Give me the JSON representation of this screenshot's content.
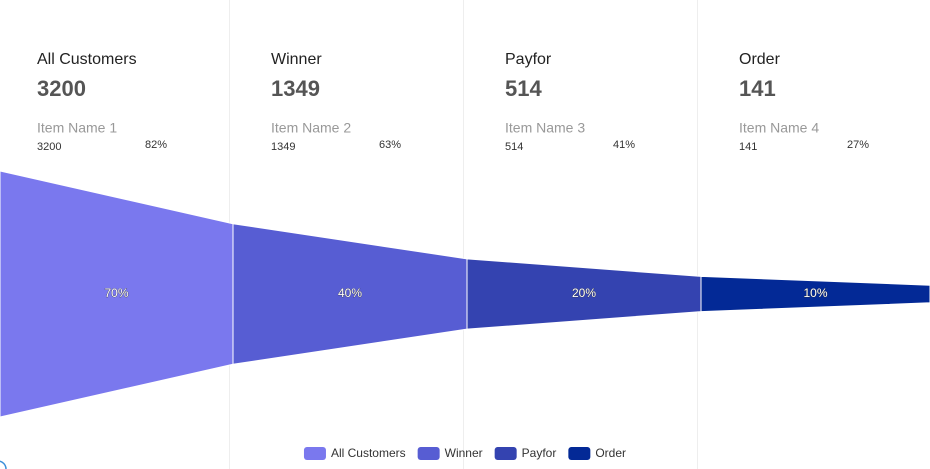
{
  "chart_data": {
    "type": "funnel",
    "categories": [
      "All Customers",
      "Winner",
      "Payfor",
      "Order"
    ],
    "values": [
      3200,
      1349,
      514,
      141
    ],
    "item_names": [
      "Item Name 1",
      "Item Name 2",
      "Item Name 3",
      "Item Name 4"
    ],
    "rate_labels": [
      "82%",
      "63%",
      "41%",
      "27%"
    ],
    "conversion": {
      "values": [
        70,
        40,
        20,
        10
      ],
      "value_labels": [
        "70%",
        "40%",
        "20%",
        "10%"
      ]
    },
    "colors": [
      "#7a78ee",
      "#575dd3",
      "#3443b0",
      "#032996"
    ],
    "legend": "bottom"
  }
}
